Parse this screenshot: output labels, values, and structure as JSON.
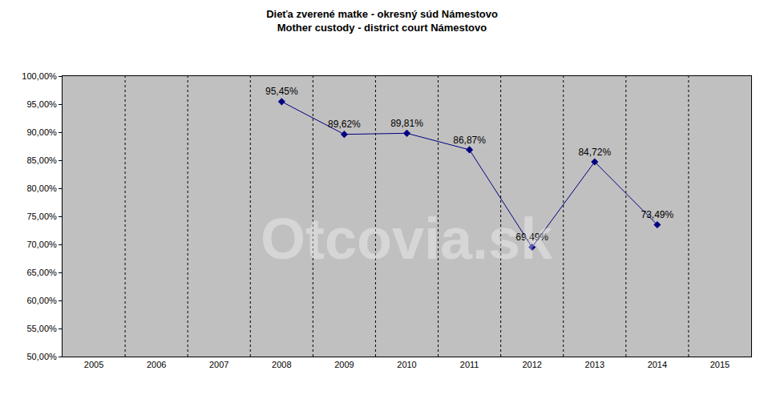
{
  "chart_data": {
    "type": "line",
    "title": "Dieťa zverené matke - okresný súd Námestovo",
    "subtitle": "Mother custody - district court Námestovo",
    "categories": [
      "2005",
      "2006",
      "2007",
      "2008",
      "2009",
      "2010",
      "2011",
      "2012",
      "2013",
      "2014",
      "2015"
    ],
    "values": [
      null,
      null,
      null,
      95.45,
      89.62,
      89.81,
      86.87,
      69.49,
      84.72,
      73.49,
      null
    ],
    "value_labels": [
      null,
      null,
      null,
      "95,45%",
      "89,62%",
      "89,81%",
      "86,87%",
      "69,49%",
      "84,72%",
      "73,49%",
      null
    ],
    "color": "#000080",
    "marker": "diamond",
    "line_style": "solid",
    "data_labels": true,
    "ylim": [
      50,
      100
    ],
    "yticks": [
      {
        "value": 50,
        "label": "50,00%"
      },
      {
        "value": 55,
        "label": "55,00%"
      },
      {
        "value": 60,
        "label": "60,00%"
      },
      {
        "value": 65,
        "label": "65,00%"
      },
      {
        "value": 70,
        "label": "70,00%"
      },
      {
        "value": 75,
        "label": "75,00%"
      },
      {
        "value": 80,
        "label": "80,00%"
      },
      {
        "value": 85,
        "label": "85,00%"
      },
      {
        "value": 90,
        "label": "90,00%"
      },
      {
        "value": 95,
        "label": "95,00%"
      },
      {
        "value": 100,
        "label": "100,00%"
      }
    ],
    "grid": true,
    "annotations": [
      {
        "text": "Otcovia.sk"
      }
    ]
  }
}
